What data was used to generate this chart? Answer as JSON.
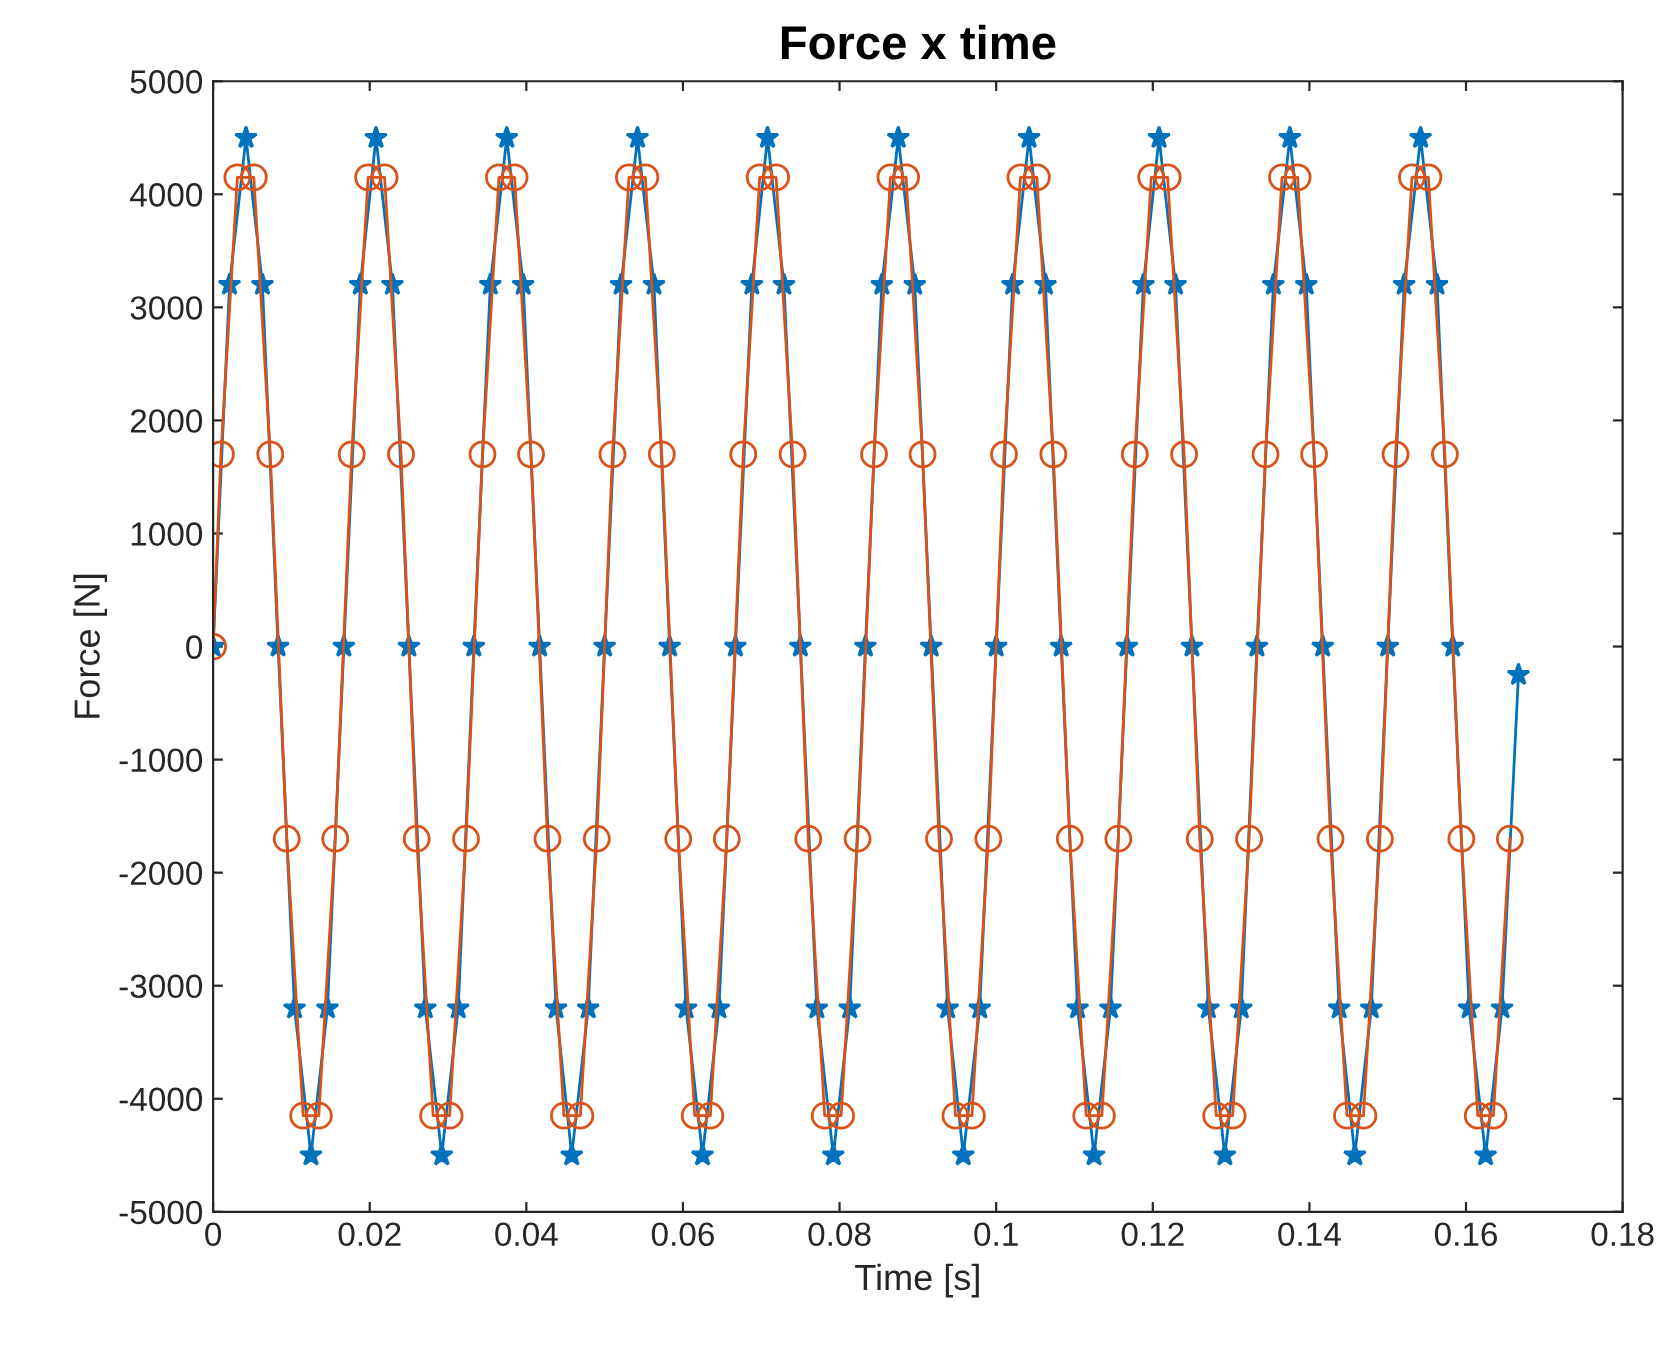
{
  "chart_data": {
    "type": "line",
    "title": "Force x time",
    "xlabel": "Time [s]",
    "ylabel": "Force [N]",
    "xlim": [
      0,
      0.18
    ],
    "xticks": [
      0,
      0.02,
      0.04,
      0.06,
      0.08,
      0.1,
      0.12,
      0.14,
      0.16,
      0.18
    ],
    "ylim": [
      -5000,
      5000
    ],
    "yticks": [
      -5000,
      -4000,
      -3000,
      -2000,
      -1000,
      0,
      1000,
      2000,
      3000,
      4000,
      5000
    ],
    "series": [
      {
        "color": "#0072bd",
        "marker": "star",
        "line_style": "solid",
        "x": [
          0,
          0.0021,
          0.0042,
          0.0063,
          0.0083,
          0.0104,
          0.0125,
          0.0146,
          0.0167,
          0.0188,
          0.0208,
          0.0229,
          0.025,
          0.0271,
          0.0292,
          0.0313,
          0.0333,
          0.0354,
          0.0375,
          0.0396,
          0.0417,
          0.0438,
          0.0458,
          0.0479,
          0.05,
          0.0521,
          0.0542,
          0.0563,
          0.0583,
          0.0604,
          0.0625,
          0.0646,
          0.0667,
          0.0688,
          0.0708,
          0.0729,
          0.075,
          0.0771,
          0.0792,
          0.0813,
          0.0833,
          0.0854,
          0.0875,
          0.0896,
          0.0917,
          0.0938,
          0.0958,
          0.0979,
          0.1,
          0.1021,
          0.1042,
          0.1063,
          0.1083,
          0.1104,
          0.1125,
          0.1146,
          0.1167,
          0.1188,
          0.1208,
          0.1229,
          0.125,
          0.1271,
          0.1292,
          0.1313,
          0.1333,
          0.1354,
          0.1375,
          0.1396,
          0.1417,
          0.1438,
          0.1458,
          0.1479,
          0.15,
          0.1521,
          0.1542,
          0.1563,
          0.1583,
          0.1604,
          0.1625,
          0.1646,
          0.1667
        ],
        "values": [
          0,
          3200,
          4500,
          3200,
          0,
          -3200,
          -4500,
          -3200,
          0,
          3200,
          4500,
          3200,
          0,
          -3200,
          -4500,
          -3200,
          0,
          3200,
          4500,
          3200,
          0,
          -3200,
          -4500,
          -3200,
          0,
          3200,
          4500,
          3200,
          0,
          -3200,
          -4500,
          -3200,
          0,
          3200,
          4500,
          3200,
          0,
          -3200,
          -4500,
          -3200,
          0,
          3200,
          4500,
          3200,
          0,
          -3200,
          -4500,
          -3200,
          0,
          3200,
          4500,
          3200,
          0,
          -3200,
          -4500,
          -3200,
          0,
          3200,
          4500,
          3200,
          0,
          -3200,
          -4500,
          -3200,
          0,
          3200,
          4500,
          3200,
          0,
          -3200,
          -4500,
          -3200,
          0,
          3200,
          4500,
          3200,
          0,
          -3200,
          -4500,
          -3200,
          -250
        ]
      },
      {
        "color": "#d95319",
        "marker": "circle",
        "line_style": "solid",
        "x": [
          0,
          0.001,
          0.0031,
          0.0052,
          0.0073,
          0.0094,
          0.0115,
          0.0135,
          0.0156,
          0.0177,
          0.0198,
          0.0219,
          0.024,
          0.026,
          0.0281,
          0.0302,
          0.0323,
          0.0344,
          0.0365,
          0.0385,
          0.0406,
          0.0427,
          0.0448,
          0.0469,
          0.049,
          0.051,
          0.0531,
          0.0552,
          0.0573,
          0.0594,
          0.0615,
          0.0635,
          0.0656,
          0.0677,
          0.0698,
          0.0719,
          0.074,
          0.076,
          0.0781,
          0.0802,
          0.0823,
          0.0844,
          0.0865,
          0.0885,
          0.0906,
          0.0927,
          0.0948,
          0.0969,
          0.099,
          0.101,
          0.1031,
          0.1052,
          0.1073,
          0.1094,
          0.1115,
          0.1135,
          0.1156,
          0.1177,
          0.1198,
          0.1219,
          0.124,
          0.126,
          0.1281,
          0.1302,
          0.1323,
          0.1344,
          0.1365,
          0.1385,
          0.1406,
          0.1427,
          0.1448,
          0.1469,
          0.149,
          0.151,
          0.1531,
          0.1552,
          0.1573,
          0.1594,
          0.1615,
          0.1635,
          0.1656
        ],
        "values": [
          0,
          1700,
          4150,
          4150,
          1700,
          -1700,
          -4150,
          -4150,
          -1700,
          1700,
          4150,
          4150,
          1700,
          -1700,
          -4150,
          -4150,
          -1700,
          1700,
          4150,
          4150,
          1700,
          -1700,
          -4150,
          -4150,
          -1700,
          1700,
          4150,
          4150,
          1700,
          -1700,
          -4150,
          -4150,
          -1700,
          1700,
          4150,
          4150,
          1700,
          -1700,
          -4150,
          -4150,
          -1700,
          1700,
          4150,
          4150,
          1700,
          -1700,
          -4150,
          -4150,
          -1700,
          1700,
          4150,
          4150,
          1700,
          -1700,
          -4150,
          -4150,
          -1700,
          1700,
          4150,
          4150,
          1700,
          -1700,
          -4150,
          -4150,
          -1700,
          1700,
          4150,
          4150,
          1700,
          -1700,
          -4150,
          -4150,
          -1700,
          1700,
          4150,
          4150,
          1700,
          -1700,
          -4150,
          -4150,
          -1700
        ]
      }
    ]
  }
}
